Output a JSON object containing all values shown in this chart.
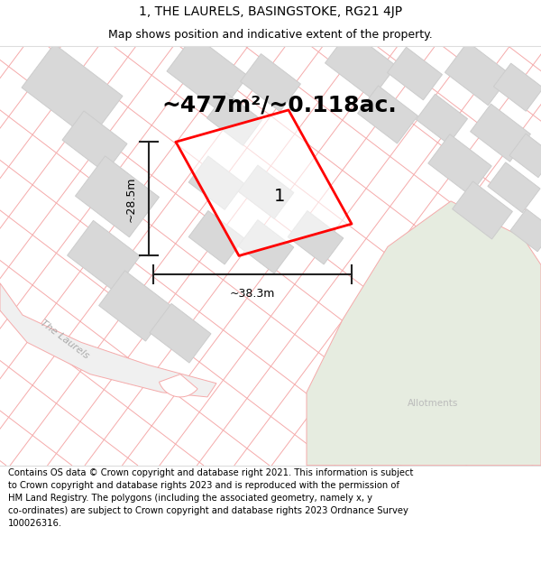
{
  "title": "1, THE LAURELS, BASINGSTOKE, RG21 4JP",
  "subtitle": "Map shows position and indicative extent of the property.",
  "footer": "Contains OS data © Crown copyright and database right 2021. This information is subject\nto Crown copyright and database rights 2023 and is reproduced with the permission of\nHM Land Registry. The polygons (including the associated geometry, namely x, y\nco-ordinates) are subject to Crown copyright and database rights 2023 Ordnance Survey\n100026316.",
  "area_label": "~477m²/~0.118ac.",
  "width_label": "~38.3m",
  "height_label": "~28.5m",
  "plot_number": "1",
  "allotments_label": "Allotments",
  "laurels_label": "The Laurels",
  "pink_color": "#f5aaaa",
  "gray_block": "#d8d8d8",
  "gray_block_edge": "#cccccc",
  "red_plot": "#ff0000",
  "green_area": "#e6ece0",
  "map_bg": "#ffffff",
  "title_fontsize": 10,
  "subtitle_fontsize": 9,
  "footer_fontsize": 7.2,
  "area_fontsize": 18,
  "plot_num_fontsize": 14,
  "measure_fontsize": 9
}
